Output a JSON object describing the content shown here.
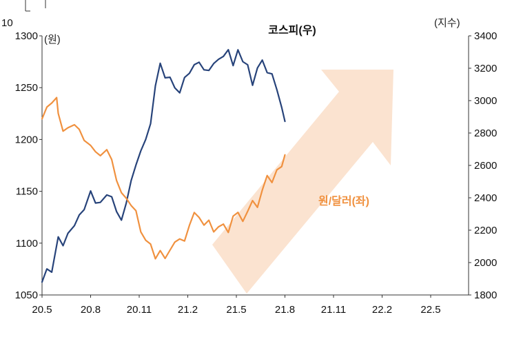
{
  "chart_data": {
    "type": "line",
    "corner_text": "10",
    "title": "코스피(우)",
    "krw_label": "원/달러(좌)",
    "left_unit": "(원)",
    "right_unit": "(지수)",
    "x_ticks": [
      "20.5",
      "20.8",
      "20.11",
      "21.2",
      "21.5",
      "21.8",
      "21.11",
      "22.2",
      "22.5"
    ],
    "y_left": {
      "min": 1050,
      "max": 1300,
      "ticks": [
        "1050",
        "1100",
        "1150",
        "1200",
        "1250",
        "1300"
      ]
    },
    "y_right": {
      "min": 1800,
      "max": 3400,
      "ticks": [
        "1800",
        "2000",
        "2200",
        "2400",
        "2600",
        "2800",
        "3000",
        "3200",
        "3400"
      ]
    },
    "colors": {
      "kospi": "#27437a",
      "krw": "#f0913f",
      "arrow": "#fbe3d0"
    },
    "series": [
      {
        "name": "코스피(우)",
        "axis": "right",
        "x": [
          0,
          0.3,
          0.6,
          1.0,
          1.3,
          1.6,
          2.0,
          2.3,
          2.6,
          3.0,
          3.3,
          3.6,
          4.0,
          4.3,
          4.6,
          4.9,
          5.2,
          5.5,
          5.8,
          6.1,
          6.4,
          6.7,
          7.0,
          7.3,
          7.6,
          7.9,
          8.2,
          8.5,
          8.8,
          9.1,
          9.4,
          9.7,
          10.0,
          10.3,
          10.6,
          10.9,
          11.2,
          11.5,
          11.8,
          12.1,
          12.4,
          12.7,
          13.0,
          13.3,
          13.6,
          13.9,
          14.2,
          14.5,
          14.8,
          15.0
        ],
        "values": [
          1880,
          1960,
          1930,
          2170,
          2100,
          2190,
          2220,
          2290,
          2330,
          2440,
          2380,
          2360,
          2420,
          2400,
          2320,
          2270,
          2360,
          2510,
          2590,
          2700,
          2760,
          2860,
          3090,
          3220,
          3150,
          3140,
          3090,
          3040,
          3140,
          3170,
          3220,
          3250,
          3180,
          3190,
          3220,
          3260,
          3280,
          3310,
          3220,
          3300,
          3250,
          3220,
          3100,
          3200,
          3240,
          3180,
          3160,
          3080,
          2950,
          2870
        ]
      },
      {
        "name": "원/달러(좌)",
        "axis": "left",
        "x": [
          0,
          0.3,
          0.6,
          0.9,
          1.0,
          1.3,
          1.6,
          2.0,
          2.3,
          2.6,
          3.0,
          3.3,
          3.6,
          4.0,
          4.3,
          4.6,
          4.9,
          5.2,
          5.5,
          5.8,
          6.1,
          6.4,
          6.7,
          7.0,
          7.3,
          7.6,
          7.9,
          8.2,
          8.5,
          8.8,
          9.1,
          9.4,
          9.7,
          10.0,
          10.3,
          10.6,
          10.9,
          11.2,
          11.5,
          11.8,
          12.1,
          12.4,
          12.7,
          13.0,
          13.3,
          13.6,
          13.9,
          14.2,
          14.5,
          14.8,
          15.0
        ],
        "values": [
          1222,
          1230,
          1235,
          1240,
          1225,
          1210,
          1210,
          1215,
          1208,
          1200,
          1195,
          1188,
          1185,
          1188,
          1182,
          1160,
          1150,
          1143,
          1135,
          1132,
          1110,
          1105,
          1098,
          1085,
          1092,
          1085,
          1095,
          1100,
          1105,
          1100,
          1118,
          1130,
          1125,
          1118,
          1120,
          1112,
          1115,
          1120,
          1110,
          1125,
          1130,
          1120,
          1133,
          1140,
          1135,
          1150,
          1165,
          1160,
          1170,
          1175,
          1183
        ]
      }
    ]
  }
}
